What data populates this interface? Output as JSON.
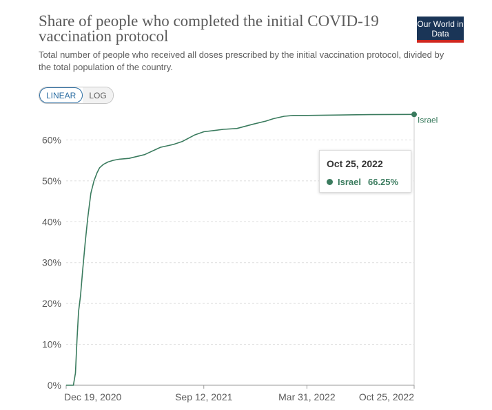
{
  "header": {
    "title": "Share of people who completed the initial COVID-19 vaccination protocol",
    "subtitle": "Total number of people who received all doses prescribed by the initial vaccination protocol, divided by the total population of the country.",
    "logo_text": "Our World in Data"
  },
  "controls": {
    "linear_label": "LINEAR",
    "log_label": "LOG",
    "active": "linear"
  },
  "tooltip": {
    "date": "Oct 25, 2022",
    "series": "Israel",
    "value": "66.25%"
  },
  "colors": {
    "series": "#3a7b5e",
    "grid": "#dddddd",
    "text": "#5b5b5b"
  },
  "chart_data": {
    "type": "line",
    "title": "Share of people who completed the initial COVID-19 vaccination protocol",
    "xlabel": "",
    "ylabel": "",
    "ylim": [
      0,
      70
    ],
    "yticks": [
      0,
      10,
      20,
      30,
      40,
      50,
      60
    ],
    "ytick_labels": [
      "0%",
      "10%",
      "20%",
      "30%",
      "40%",
      "50%",
      "60%"
    ],
    "xlim": [
      "2020-12-19",
      "2022-10-25"
    ],
    "xtick_dates": [
      "2020-12-19",
      "2021-09-12",
      "2022-03-31",
      "2022-10-25"
    ],
    "xtick_labels": [
      "Dec 19, 2020",
      "Sep 12, 2021",
      "Mar 31, 2022",
      "Oct 25, 2022"
    ],
    "grid": true,
    "series": [
      {
        "name": "Israel",
        "x": [
          "2020-12-19",
          "2021-01-02",
          "2021-01-06",
          "2021-01-09",
          "2021-01-12",
          "2021-01-16",
          "2021-01-20",
          "2021-01-25",
          "2021-01-30",
          "2021-02-05",
          "2021-02-11",
          "2021-02-17",
          "2021-02-22",
          "2021-03-01",
          "2021-03-10",
          "2021-03-20",
          "2021-04-01",
          "2021-04-20",
          "2021-05-20",
          "2021-06-20",
          "2021-07-15",
          "2021-08-01",
          "2021-08-10",
          "2021-08-25",
          "2021-09-12",
          "2021-10-01",
          "2021-10-20",
          "2021-11-15",
          "2021-12-15",
          "2022-01-10",
          "2022-01-25",
          "2022-02-15",
          "2022-03-05",
          "2022-03-31",
          "2022-06-01",
          "2022-08-01",
          "2022-10-25"
        ],
        "values": [
          0,
          0,
          3,
          11,
          18,
          22,
          28,
          35,
          41,
          47,
          50,
          52,
          53.2,
          54,
          54.6,
          55,
          55.3,
          55.5,
          56.4,
          58.2,
          58.9,
          59.6,
          60.2,
          61.2,
          62,
          62.3,
          62.6,
          62.8,
          63.8,
          64.6,
          65.2,
          65.8,
          66,
          66,
          66.1,
          66.2,
          66.25
        ]
      }
    ]
  }
}
